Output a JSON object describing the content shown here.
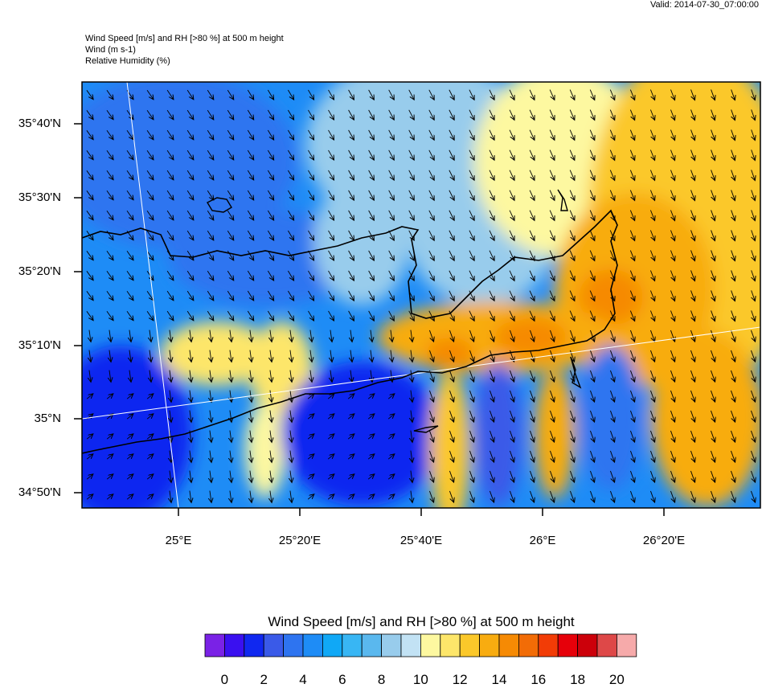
{
  "valid_time": "Valid: 2014-07-30_07:00:00",
  "header": {
    "line1": "Wind Speed [m/s] and RH [>80 %] at 500 m height",
    "line2": "Wind   (m s-1)",
    "line3": "Relative Humidity   (%)"
  },
  "map": {
    "lat_labels": [
      "35°40'N",
      "35°30'N",
      "35°20'N",
      "35°10'N",
      "35°N",
      "34°50'N"
    ],
    "lon_labels": [
      "25°E",
      "25°20'E",
      "25°40'E",
      "26°E",
      "26°20'E"
    ]
  },
  "legend": {
    "title": "Wind Speed [m/s] and RH [>80 %] at 500 m height",
    "tick_labels": [
      "0",
      "2",
      "4",
      "6",
      "8",
      "10",
      "12",
      "14",
      "16",
      "18",
      "20"
    ],
    "colors": [
      "#7a22e6",
      "#3a10f0",
      "#1028f0",
      "#3a5ae8",
      "#2e74f0",
      "#1e8cf6",
      "#10a8f6",
      "#38b6f4",
      "#5ab8ee",
      "#98ccec",
      "#c2e2f4",
      "#fdf8a0",
      "#fde66a",
      "#fbc82a",
      "#f8ac10",
      "#f68a04",
      "#f26c06",
      "#f23c06",
      "#e6000a",
      "#cc000a",
      "#de4848",
      "#f6aaaa"
    ]
  }
}
